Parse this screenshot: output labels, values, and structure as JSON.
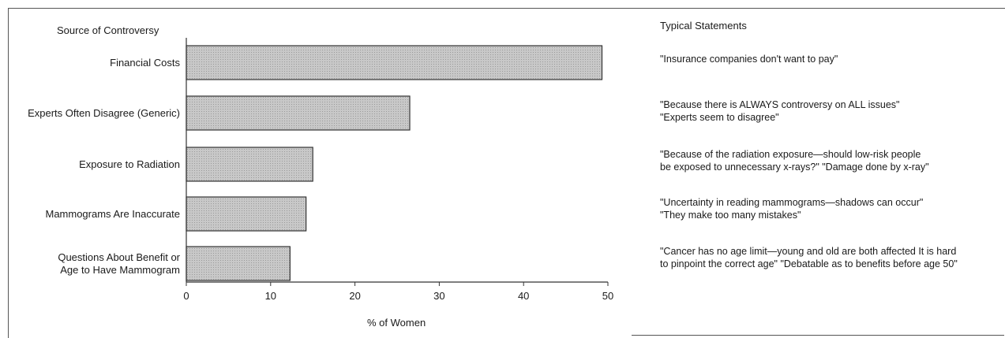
{
  "chart_data": {
    "type": "bar",
    "orientation": "horizontal",
    "title": "Source of Controversy",
    "xlabel": "% of Women",
    "categories": [
      "Financial Costs",
      "Experts Often Disagree (Generic)",
      "Exposure to Radiation",
      "Mammograms Are Inaccurate",
      "Questions About Benefit or Age to Have Mammogram"
    ],
    "category_lines": [
      [
        "Financial Costs"
      ],
      [
        "Experts Often Disagree (Generic)"
      ],
      [
        "Exposure to Radiation"
      ],
      [
        "Mammograms Are Inaccurate"
      ],
      [
        "Questions About Benefit or",
        "Age to Have Mammogram"
      ]
    ],
    "values": [
      49.3,
      26.5,
      15,
      14.2,
      12.3
    ],
    "xlim": [
      0,
      50
    ],
    "xticks": [
      0,
      10,
      20,
      30,
      40,
      50
    ],
    "grid": false
  },
  "statements": {
    "title": "Typical Statements",
    "items": [
      [
        "\"Insurance companies don't want to pay\""
      ],
      [
        "\"Because there is ALWAYS controversy on ALL issues\"",
        "\"Experts seem to disagree\""
      ],
      [
        "\"Because of the radiation exposure—should low-risk people",
        "be exposed to unnecessary x-rays?\" \"Damage done by x-ray\""
      ],
      [
        "\"Uncertainty in reading mammograms—shadows can occur\"",
        "\"They make too many mistakes\""
      ],
      [
        "\"Cancer has no age limit—young and old are both affected  It is hard",
        "to pinpoint the correct age\"  \"Debatable as to benefits before age 50\""
      ]
    ]
  },
  "colors": {
    "bar_fill": "#c8c8c8",
    "bar_stroke": "#333333",
    "axis": "#333333"
  }
}
